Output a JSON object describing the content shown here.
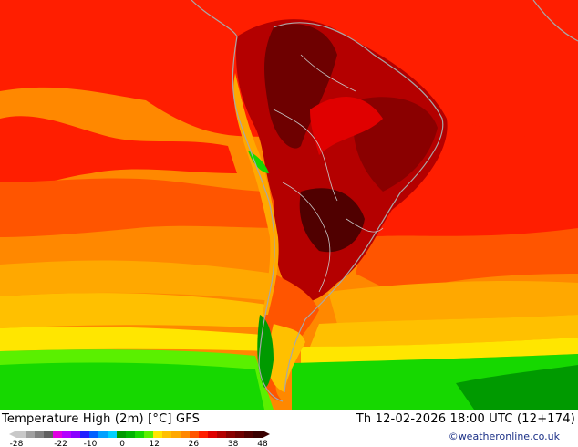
{
  "map": {
    "title": "Temperature High (2m) [°C] GFS",
    "valid_time": "Th 12-02-2026 18:00 UTC (12+174)",
    "credit": "©weatheronline.co.uk",
    "region": "South America",
    "colors": {
      "dark_red_hot": "#6e0000",
      "red": "#e00000",
      "bright_red": "#ff1e00",
      "orange_red": "#ff5500",
      "orange": "#ff8800",
      "light_orange": "#ffa800",
      "yellow_orange": "#ffc000",
      "green": "#16d800",
      "dark_green": "#009a00",
      "coast": "#a8a8a8"
    }
  },
  "legend": {
    "ticks": [
      "-28",
      "-22",
      "-10",
      "0",
      "12",
      "26",
      "38",
      "48"
    ],
    "colors": [
      "#c8c8c8",
      "#a0a0a0",
      "#808080",
      "#606060",
      "#e000e0",
      "#b400ff",
      "#8a00ff",
      "#2020ff",
      "#0060ff",
      "#00a0ff",
      "#00d0ff",
      "#009a00",
      "#00b400",
      "#16d800",
      "#5af000",
      "#ffe600",
      "#ffc000",
      "#ffa800",
      "#ff8800",
      "#ff5500",
      "#ff1e00",
      "#e00000",
      "#b40000",
      "#8a0000",
      "#6e0000",
      "#500000",
      "#3a0000"
    ]
  }
}
